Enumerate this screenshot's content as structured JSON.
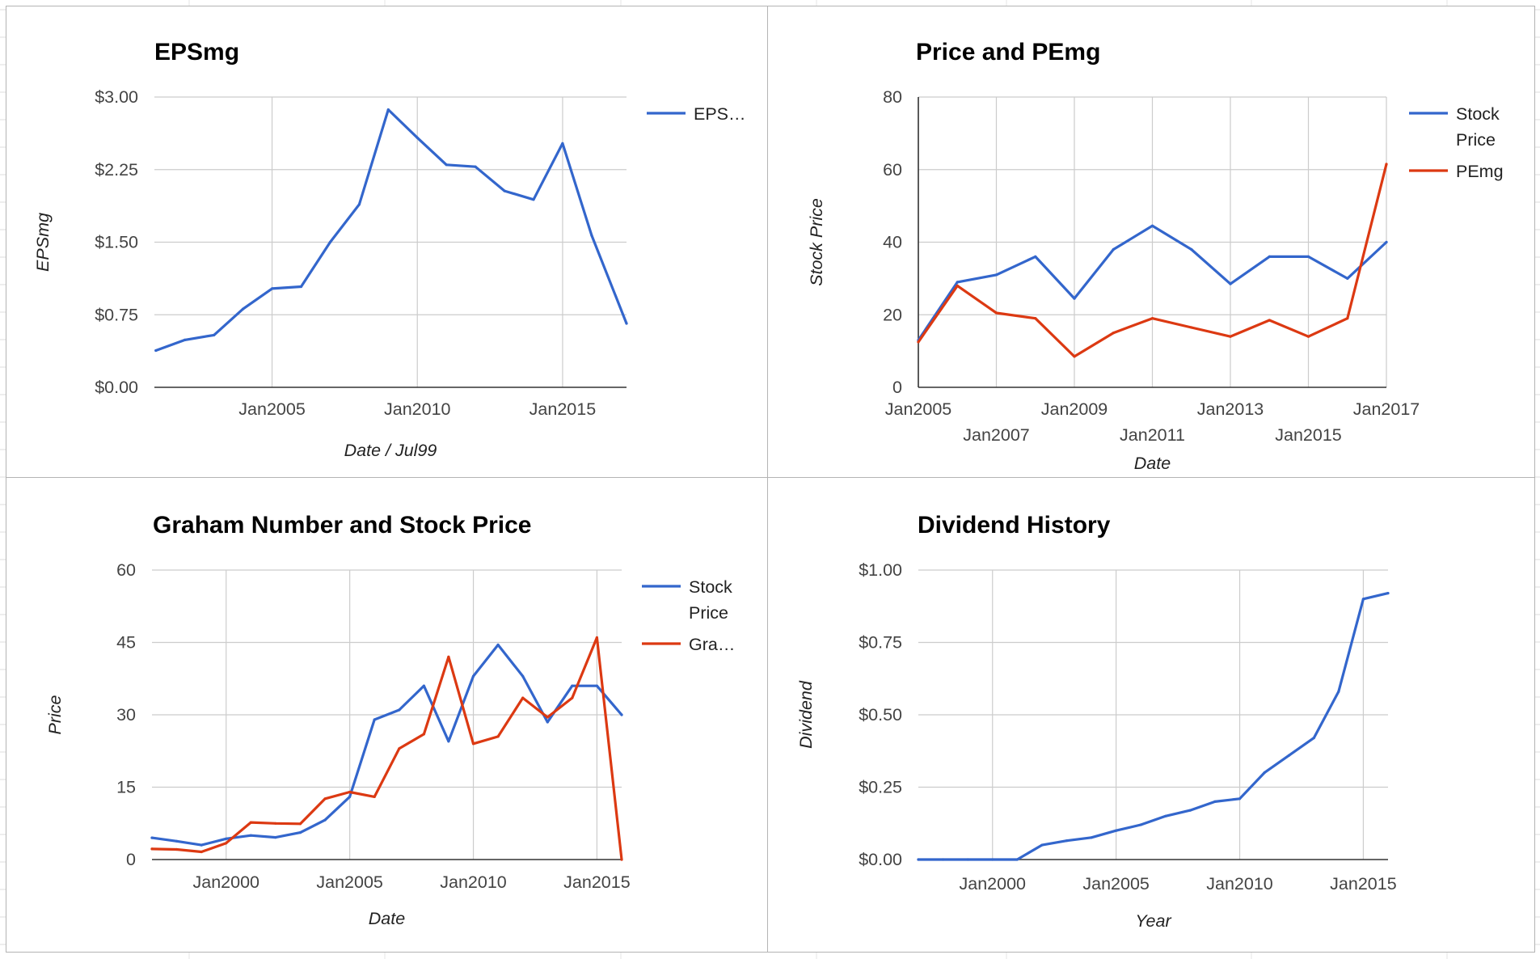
{
  "colors": {
    "blue": "#3366cc",
    "red": "#dc3912",
    "grid": "#cccccc",
    "axis": "#333333"
  },
  "chart_data": [
    {
      "type": "line",
      "title": "EPSmg",
      "xlabel": "Date / Jul99",
      "ylabel": "EPSmg",
      "x_ticks": [
        {
          "x": 2005.0,
          "label": "Jan2005",
          "row": 0
        },
        {
          "x": 2010.0,
          "label": "Jan2010",
          "row": 0
        },
        {
          "x": 2015.0,
          "label": "Jan2015",
          "row": 0
        }
      ],
      "xlim": [
        2000.95,
        2017.2
      ],
      "y_ticks": [
        {
          "v": 0,
          "label": "$0.00"
        },
        {
          "v": 0.75,
          "label": "$0.75"
        },
        {
          "v": 1.5,
          "label": "$1.50"
        },
        {
          "v": 2.25,
          "label": "$2.25"
        },
        {
          "v": 3.0,
          "label": "$3.00"
        }
      ],
      "ylim": [
        0,
        3.0
      ],
      "grid": true,
      "legend_position": "right",
      "series": [
        {
          "name": "EPS…",
          "color": "#3366cc",
          "x": [
            2001,
            2002,
            2003,
            2004,
            2005,
            2006,
            2007,
            2008,
            2009,
            2010,
            2011,
            2012,
            2013,
            2014,
            2015,
            2016,
            2017.2
          ],
          "y": [
            0.38,
            0.49,
            0.54,
            0.81,
            1.02,
            1.04,
            1.5,
            1.89,
            2.87,
            2.58,
            2.3,
            2.28,
            2.03,
            1.94,
            2.52,
            1.57,
            0.66
          ]
        }
      ]
    },
    {
      "type": "line",
      "title": "Price and PEmg",
      "xlabel": "Date",
      "ylabel": "Stock Price",
      "x_ticks": [
        {
          "x": 2005.0,
          "label": "Jan2005",
          "row": 0
        },
        {
          "x": 2007.0,
          "label": "Jan2007",
          "row": 1
        },
        {
          "x": 2009.0,
          "label": "Jan2009",
          "row": 0
        },
        {
          "x": 2011.0,
          "label": "Jan2011",
          "row": 1
        },
        {
          "x": 2013.0,
          "label": "Jan2013",
          "row": 0
        },
        {
          "x": 2015.0,
          "label": "Jan2015",
          "row": 1
        },
        {
          "x": 2017.0,
          "label": "Jan2017",
          "row": 0
        }
      ],
      "xlim": [
        2005.0,
        2017.0
      ],
      "y_ticks": [
        {
          "v": 0,
          "label": "0"
        },
        {
          "v": 20,
          "label": "20"
        },
        {
          "v": 40,
          "label": "40"
        },
        {
          "v": 60,
          "label": "60"
        },
        {
          "v": 80,
          "label": "80"
        }
      ],
      "ylim": [
        0,
        80
      ],
      "grid": true,
      "legend_position": "right",
      "series": [
        {
          "name": "Stock Price",
          "color": "#3366cc",
          "x": [
            2005,
            2006,
            2007,
            2008,
            2009,
            2010,
            2011,
            2012,
            2013,
            2014,
            2015,
            2016,
            2017
          ],
          "y": [
            13,
            29,
            31,
            36,
            24.5,
            38,
            44.5,
            38,
            28.5,
            36,
            36,
            30,
            40
          ]
        },
        {
          "name": "PEmg",
          "color": "#dc3912",
          "x": [
            2005,
            2006,
            2007,
            2008,
            2009,
            2010,
            2011,
            2012,
            2013,
            2014,
            2015,
            2016,
            2017
          ],
          "y": [
            12.5,
            28,
            20.5,
            19,
            8.5,
            15,
            19,
            16.5,
            14,
            18.5,
            14,
            19,
            61.5
          ]
        }
      ]
    },
    {
      "type": "line",
      "title": "Graham Number and Stock Price",
      "xlabel": "Date",
      "ylabel": "Price",
      "x_ticks": [
        {
          "x": 2000.0,
          "label": "Jan2000",
          "row": 0
        },
        {
          "x": 2005.0,
          "label": "Jan2005",
          "row": 0
        },
        {
          "x": 2010.0,
          "label": "Jan2010",
          "row": 0
        },
        {
          "x": 2015.0,
          "label": "Jan2015",
          "row": 0
        }
      ],
      "xlim": [
        1997.0,
        2016.0
      ],
      "y_ticks": [
        {
          "v": 0,
          "label": "0"
        },
        {
          "v": 15,
          "label": "15"
        },
        {
          "v": 30,
          "label": "30"
        },
        {
          "v": 45,
          "label": "45"
        },
        {
          "v": 60,
          "label": "60"
        }
      ],
      "ylim": [
        0,
        60
      ],
      "grid": true,
      "legend_position": "right",
      "series": [
        {
          "name": "Stock Price",
          "color": "#3366cc",
          "x": [
            1997,
            1998,
            1999,
            2000,
            2001,
            2002,
            2003,
            2004,
            2005,
            2006,
            2007,
            2008,
            2009,
            2010,
            2011,
            2012,
            2013,
            2014,
            2015,
            2016
          ],
          "y": [
            4.5,
            3.8,
            3.0,
            4.3,
            5.0,
            4.6,
            5.6,
            8.2,
            13,
            29,
            31,
            36,
            24.5,
            38,
            44.5,
            38,
            28.5,
            36,
            36,
            30
          ]
        },
        {
          "name": "Gra…",
          "color": "#dc3912",
          "x": [
            1997,
            1998,
            1999,
            2000,
            2001,
            2002,
            2003,
            2004,
            2005,
            2006,
            2007,
            2008,
            2009,
            2010,
            2011,
            2012,
            2013,
            2014,
            2015,
            2016
          ],
          "y": [
            2.2,
            2.1,
            1.6,
            3.4,
            7.7,
            7.5,
            7.4,
            12.6,
            14,
            13,
            23,
            26,
            42,
            24,
            25.5,
            33.5,
            29.5,
            33.5,
            46,
            0
          ]
        }
      ]
    },
    {
      "type": "line",
      "title": "Dividend History",
      "xlabel": "Year",
      "ylabel": "Dividend",
      "x_ticks": [
        {
          "x": 2000.0,
          "label": "Jan2000",
          "row": 0
        },
        {
          "x": 2005.0,
          "label": "Jan2005",
          "row": 0
        },
        {
          "x": 2010.0,
          "label": "Jan2010",
          "row": 0
        },
        {
          "x": 2015.0,
          "label": "Jan2015",
          "row": 0
        }
      ],
      "xlim": [
        1997.0,
        2016.0
      ],
      "y_ticks": [
        {
          "v": 0,
          "label": "$0.00"
        },
        {
          "v": 0.25,
          "label": "$0.25"
        },
        {
          "v": 0.5,
          "label": "$0.50"
        },
        {
          "v": 0.75,
          "label": "$0.75"
        },
        {
          "v": 1.0,
          "label": "$1.00"
        }
      ],
      "ylim": [
        0,
        1.0
      ],
      "grid": true,
      "legend_position": "none",
      "series": [
        {
          "name": "",
          "color": "#3366cc",
          "x": [
            1997,
            1998,
            1999,
            2000,
            2001,
            2002,
            2003,
            2004,
            2005,
            2006,
            2007,
            2008,
            2009,
            2010,
            2011,
            2012,
            2013,
            2014,
            2015,
            2016
          ],
          "y": [
            0,
            0,
            0,
            0,
            0,
            0.05,
            0.065,
            0.076,
            0.1,
            0.12,
            0.15,
            0.17,
            0.2,
            0.21,
            0.3,
            0.36,
            0.42,
            0.58,
            0.9,
            0.92
          ]
        }
      ]
    }
  ]
}
